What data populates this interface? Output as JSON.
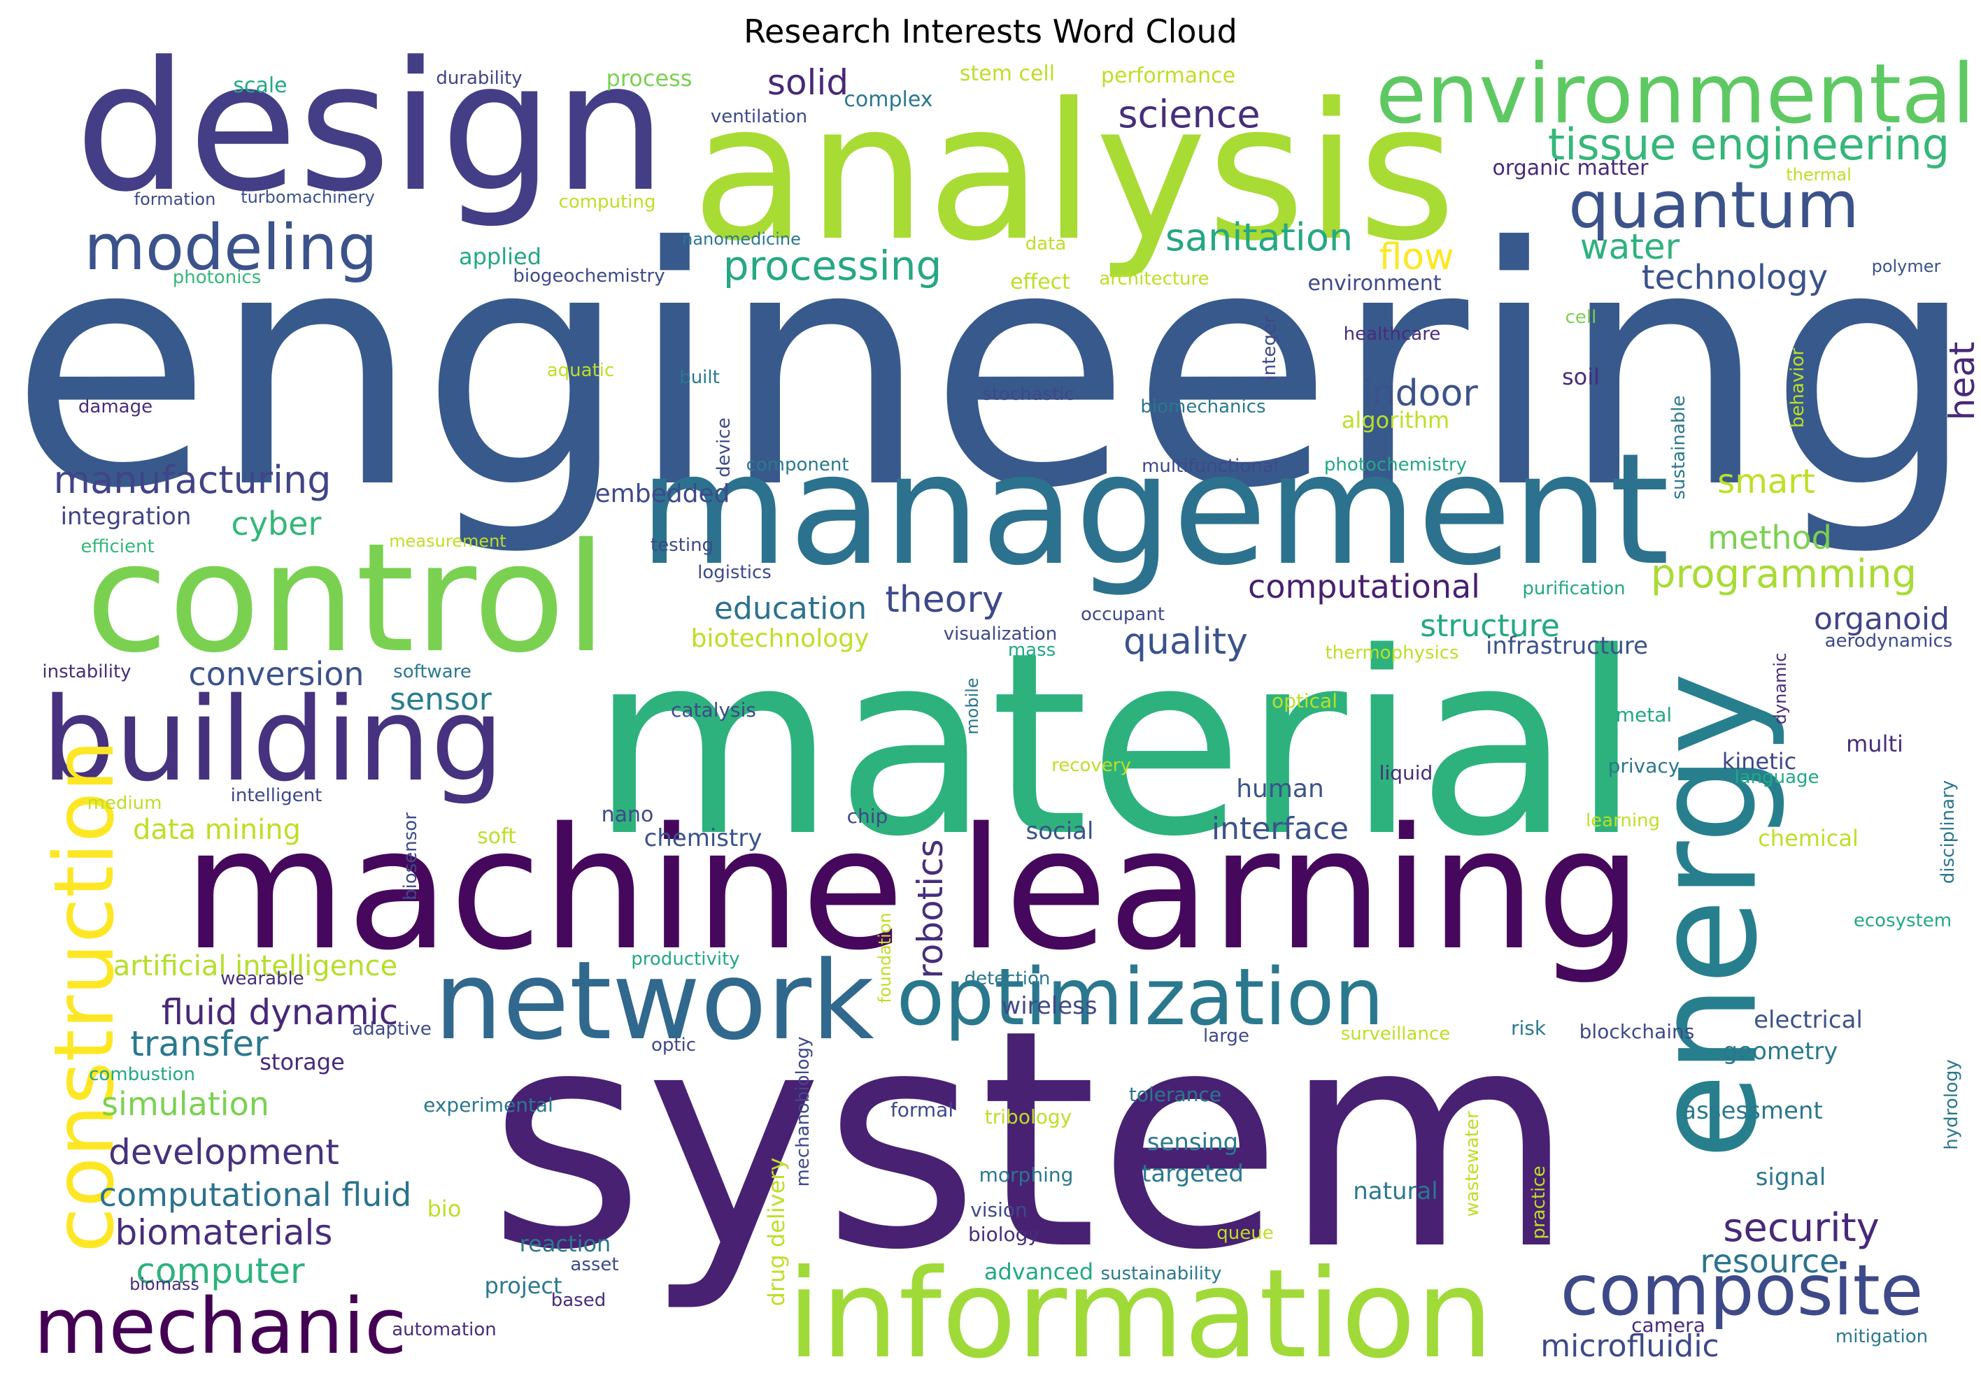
{
  "title": "Research Interests Word Cloud",
  "words": [
    {
      "text": "engineering",
      "color": "#38598c",
      "size": 1.0
    },
    {
      "text": "system",
      "color": "#482173",
      "size": 0.92
    },
    {
      "text": "material",
      "color": "#2db27d",
      "size": 0.84
    },
    {
      "text": "analysis",
      "color": "#a8db34",
      "size": 0.6
    },
    {
      "text": "design",
      "color": "#433e85",
      "size": 0.58
    },
    {
      "text": "machine learning",
      "color": "#46085c",
      "size": 0.52
    },
    {
      "text": "management",
      "color": "#2c728e",
      "size": 0.5
    },
    {
      "text": "control",
      "color": "#7ad151",
      "size": 0.5
    },
    {
      "text": "energy",
      "color": "#277f8e",
      "size": 0.48
    },
    {
      "text": "information",
      "color": "#a0da39",
      "size": 0.38
    },
    {
      "text": "building",
      "color": "#46327e",
      "size": 0.36
    },
    {
      "text": "network",
      "color": "#31688e",
      "size": 0.35
    },
    {
      "text": "optimization",
      "color": "#2a788e",
      "size": 0.3
    },
    {
      "text": "construction",
      "color": "#fde725",
      "size": 0.3
    },
    {
      "text": "environmental",
      "color": "#5ec962",
      "size": 0.28
    },
    {
      "text": "mechanic",
      "color": "#440154",
      "size": 0.26
    },
    {
      "text": "composite",
      "color": "#3e4989",
      "size": 0.25
    },
    {
      "text": "quantum",
      "color": "#3b528b",
      "size": 0.2
    },
    {
      "text": "modeling",
      "color": "#3b528b",
      "size": 0.18
    },
    {
      "text": "tissue engineering",
      "color": "#35b779",
      "size": 0.14
    },
    {
      "text": "processing",
      "color": "#26a784",
      "size": 0.13
    },
    {
      "text": "sanitation",
      "color": "#26a784",
      "size": 0.12
    },
    {
      "text": "manufacturing",
      "color": "#414487",
      "size": 0.12
    },
    {
      "text": "science",
      "color": "#472d7b",
      "size": 0.12
    },
    {
      "text": "solid",
      "color": "#482878",
      "size": 0.11
    },
    {
      "text": "water",
      "color": "#2db27d",
      "size": 0.11
    },
    {
      "text": "technology",
      "color": "#3b528b",
      "size": 0.1
    },
    {
      "text": "flow",
      "color": "#fde725",
      "size": 0.11
    },
    {
      "text": "heat",
      "color": "#482878",
      "size": 0.1
    },
    {
      "text": "indoor",
      "color": "#3b528b",
      "size": 0.11
    },
    {
      "text": "smart",
      "color": "#bddf26",
      "size": 0.1
    },
    {
      "text": "method",
      "color": "#7ad151",
      "size": 0.1
    },
    {
      "text": "programming",
      "color": "#a8db34",
      "size": 0.1
    },
    {
      "text": "computational",
      "color": "#481f70",
      "size": 0.1
    },
    {
      "text": "education",
      "color": "#2c728e",
      "size": 0.1
    },
    {
      "text": "theory",
      "color": "#3e4989",
      "size": 0.11
    },
    {
      "text": "quality",
      "color": "#3b528b",
      "size": 0.12
    },
    {
      "text": "structure",
      "color": "#22a884",
      "size": 0.1
    },
    {
      "text": "organoid",
      "color": "#414487",
      "size": 0.1
    },
    {
      "text": "cyber",
      "color": "#35b779",
      "size": 0.1
    },
    {
      "text": "conversion",
      "color": "#3b528b",
      "size": 0.1
    },
    {
      "text": "sensor",
      "color": "#287d8e",
      "size": 0.09
    },
    {
      "text": "robotics",
      "color": "#472d7b",
      "size": 0.1
    },
    {
      "text": "interface",
      "color": "#3b528b",
      "size": 0.09
    },
    {
      "text": "fluid dynamic",
      "color": "#482878",
      "size": 0.1
    },
    {
      "text": "transfer",
      "color": "#2a788e",
      "size": 0.1
    },
    {
      "text": "simulation",
      "color": "#7ad151",
      "size": 0.1
    },
    {
      "text": "development",
      "color": "#46327e",
      "size": 0.1
    },
    {
      "text": "computational fluid",
      "color": "#2c728e",
      "size": 0.1
    },
    {
      "text": "biomaterials",
      "color": "#472d7b",
      "size": 0.1
    },
    {
      "text": "computer",
      "color": "#2db27d",
      "size": 0.1
    },
    {
      "text": "security",
      "color": "#482878",
      "size": 0.1
    },
    {
      "text": "resource",
      "color": "#2c728e",
      "size": 0.09
    },
    {
      "text": "microfluidic",
      "color": "#3e4989",
      "size": 0.09
    },
    {
      "text": "data mining",
      "color": "#bddf26",
      "size": 0.08
    },
    {
      "text": "artificial intelligence",
      "color": "#b5de2b",
      "size": 0.08
    },
    {
      "text": "infrastructure",
      "color": "#3b528b",
      "size": 0.07
    },
    {
      "text": "embedded",
      "color": "#3e4989",
      "size": 0.07
    },
    {
      "text": "integration",
      "color": "#414487",
      "size": 0.07
    },
    {
      "text": "biotechnology",
      "color": "#bddf26",
      "size": 0.07
    },
    {
      "text": "chemistry",
      "color": "#3b528b",
      "size": 0.07
    },
    {
      "text": "human",
      "color": "#3b528b",
      "size": 0.07
    },
    {
      "text": "social",
      "color": "#3b528b",
      "size": 0.07
    },
    {
      "text": "wireless",
      "color": "#3e4989",
      "size": 0.07
    },
    {
      "text": "electrical",
      "color": "#3b528b",
      "size": 0.07
    },
    {
      "text": "geometry",
      "color": "#2a788e",
      "size": 0.07
    },
    {
      "text": "assessment",
      "color": "#2a788e",
      "size": 0.07
    },
    {
      "text": "signal",
      "color": "#2a788e",
      "size": 0.07
    },
    {
      "text": "natural",
      "color": "#2a788e",
      "size": 0.07
    },
    {
      "text": "targeted",
      "color": "#2a788e",
      "size": 0.07
    },
    {
      "text": "sensing",
      "color": "#2a788e",
      "size": 0.07
    },
    {
      "text": "storage",
      "color": "#482878",
      "size": 0.06
    },
    {
      "text": "multi",
      "color": "#472d7b",
      "size": 0.06
    },
    {
      "text": "kinetic",
      "color": "#3e4989",
      "size": 0.06
    },
    {
      "text": "reaction",
      "color": "#2a788e",
      "size": 0.06
    },
    {
      "text": "project",
      "color": "#2a788e",
      "size": 0.06
    },
    {
      "text": "advanced",
      "color": "#22a884",
      "size": 0.06
    },
    {
      "text": "camera",
      "color": "#472d7b",
      "size": 0.05
    },
    {
      "text": "chemical",
      "color": "#bddf26",
      "size": 0.06
    },
    {
      "text": "soil",
      "color": "#472d7b",
      "size": 0.06
    },
    {
      "text": "algorithm",
      "color": "#bddf26",
      "size": 0.06
    },
    {
      "text": "environment",
      "color": "#3e4989",
      "size": 0.06
    },
    {
      "text": "applied",
      "color": "#22a884",
      "size": 0.06
    },
    {
      "text": "process",
      "color": "#7ad151",
      "size": 0.06
    },
    {
      "text": "scale",
      "color": "#22a884",
      "size": 0.06
    },
    {
      "text": "complex",
      "color": "#2a788e",
      "size": 0.06
    },
    {
      "text": "stem cell",
      "color": "#bddf26",
      "size": 0.06
    },
    {
      "text": "performance",
      "color": "#bddf26",
      "size": 0.06
    },
    {
      "text": "durability",
      "color": "#414487",
      "size": 0.05
    },
    {
      "text": "ventilation",
      "color": "#3e4989",
      "size": 0.05
    },
    {
      "text": "organic matter",
      "color": "#482878",
      "size": 0.06
    },
    {
      "text": "thermal",
      "color": "#bddf26",
      "size": 0.05
    },
    {
      "text": "formation",
      "color": "#3e4989",
      "size": 0.05
    },
    {
      "text": "turbomachinery",
      "color": "#3b528b",
      "size": 0.05
    },
    {
      "text": "computing",
      "color": "#bddf26",
      "size": 0.05
    },
    {
      "text": "nanomedicine",
      "color": "#2a788e",
      "size": 0.05
    },
    {
      "text": "data",
      "color": "#bddf26",
      "size": 0.05
    },
    {
      "text": "photonics",
      "color": "#35b779",
      "size": 0.05
    },
    {
      "text": "biogeochemistry",
      "color": "#3e4989",
      "size": 0.05
    },
    {
      "text": "effect",
      "color": "#bddf26",
      "size": 0.06
    },
    {
      "text": "architecture",
      "color": "#bddf26",
      "size": 0.05
    },
    {
      "text": "polymer",
      "color": "#3b528b",
      "size": 0.05
    },
    {
      "text": "cell",
      "color": "#7ad151",
      "size": 0.05
    },
    {
      "text": "healthcare",
      "color": "#472d7b",
      "size": 0.05
    },
    {
      "text": "integer",
      "color": "#3e4989",
      "size": 0.05
    },
    {
      "text": "aquatic",
      "color": "#bddf26",
      "size": 0.05
    },
    {
      "text": "built",
      "color": "#2a788e",
      "size": 0.05
    },
    {
      "text": "damage",
      "color": "#472d7b",
      "size": 0.05
    },
    {
      "text": "stochastic",
      "color": "#3e4989",
      "size": 0.05
    },
    {
      "text": "biomechanics",
      "color": "#2a788e",
      "size": 0.05
    },
    {
      "text": "sustainable",
      "color": "#2a788e",
      "size": 0.05
    },
    {
      "text": "behavior",
      "color": "#bddf26",
      "size": 0.05
    },
    {
      "text": "device",
      "color": "#3e4989",
      "size": 0.05
    },
    {
      "text": "component",
      "color": "#2a788e",
      "size": 0.05
    },
    {
      "text": "multifunctional",
      "color": "#3e4989",
      "size": 0.05
    },
    {
      "text": "photochemistry",
      "color": "#22a884",
      "size": 0.05
    },
    {
      "text": "efficient",
      "color": "#35b779",
      "size": 0.05
    },
    {
      "text": "measurement",
      "color": "#bddf26",
      "size": 0.05
    },
    {
      "text": "testing",
      "color": "#3e4989",
      "size": 0.05
    },
    {
      "text": "logistics",
      "color": "#3e4989",
      "size": 0.05
    },
    {
      "text": "purification",
      "color": "#22a884",
      "size": 0.05
    },
    {
      "text": "occupant",
      "color": "#3e4989",
      "size": 0.05
    },
    {
      "text": "visualization",
      "color": "#3e4989",
      "size": 0.05
    },
    {
      "text": "mass",
      "color": "#22a884",
      "size": 0.05
    },
    {
      "text": "thermophysics",
      "color": "#bddf26",
      "size": 0.05
    },
    {
      "text": "aerodynamics",
      "color": "#3e4989",
      "size": 0.05
    },
    {
      "text": "instability",
      "color": "#472d7b",
      "size": 0.05
    },
    {
      "text": "software",
      "color": "#2a788e",
      "size": 0.05
    },
    {
      "text": "catalysis",
      "color": "#3e4989",
      "size": 0.05
    },
    {
      "text": "mobile",
      "color": "#2a788e",
      "size": 0.05
    },
    {
      "text": "optical",
      "color": "#bddf26",
      "size": 0.05
    },
    {
      "text": "metal",
      "color": "#22a884",
      "size": 0.05
    },
    {
      "text": "dynamic",
      "color": "#472d7b",
      "size": 0.05
    },
    {
      "text": "recovery",
      "color": "#bddf26",
      "size": 0.05
    },
    {
      "text": "liquid",
      "color": "#472d7b",
      "size": 0.05
    },
    {
      "text": "privacy",
      "color": "#2a788e",
      "size": 0.05
    },
    {
      "text": "language",
      "color": "#22a884",
      "size": 0.05
    },
    {
      "text": "disciplinary",
      "color": "#2a788e",
      "size": 0.05
    },
    {
      "text": "medium",
      "color": "#bddf26",
      "size": 0.05
    },
    {
      "text": "intelligent",
      "color": "#3e4989",
      "size": 0.05
    },
    {
      "text": "biosensor",
      "color": "#3e4989",
      "size": 0.05
    },
    {
      "text": "nano",
      "color": "#3e4989",
      "size": 0.06
    },
    {
      "text": "chip",
      "color": "#3e4989",
      "size": 0.05
    },
    {
      "text": "learning",
      "color": "#bddf26",
      "size": 0.05
    },
    {
      "text": "soft",
      "color": "#bddf26",
      "size": 0.06
    },
    {
      "text": "foundation",
      "color": "#bddf26",
      "size": 0.05
    },
    {
      "text": "productivity",
      "color": "#22a884",
      "size": 0.05
    },
    {
      "text": "ecosystem",
      "color": "#22a884",
      "size": 0.05
    },
    {
      "text": "wearable",
      "color": "#472d7b",
      "size": 0.05
    },
    {
      "text": "detection",
      "color": "#2a788e",
      "size": 0.05
    },
    {
      "text": "adaptive",
      "color": "#3e4989",
      "size": 0.05
    },
    {
      "text": "large",
      "color": "#3e4989",
      "size": 0.05
    },
    {
      "text": "surveillance",
      "color": "#bddf26",
      "size": 0.05
    },
    {
      "text": "risk",
      "color": "#2a788e",
      "size": 0.05
    },
    {
      "text": "blockchains",
      "color": "#3e4989",
      "size": 0.05
    },
    {
      "text": "optic",
      "color": "#3e4989",
      "size": 0.05
    },
    {
      "text": "mechanobiology",
      "color": "#3e4989",
      "size": 0.05
    },
    {
      "text": "combustion",
      "color": "#22a884",
      "size": 0.05
    },
    {
      "text": "tolerance",
      "color": "#2a788e",
      "size": 0.05
    },
    {
      "text": "experimental",
      "color": "#2a788e",
      "size": 0.05
    },
    {
      "text": "formal",
      "color": "#3e4989",
      "size": 0.05
    },
    {
      "text": "tribology",
      "color": "#bddf26",
      "size": 0.05
    },
    {
      "text": "hydrology",
      "color": "#2a788e",
      "size": 0.05
    },
    {
      "text": "wastewater",
      "color": "#bddf26",
      "size": 0.05
    },
    {
      "text": "practice",
      "color": "#bddf26",
      "size": 0.05
    },
    {
      "text": "drug delivery",
      "color": "#bddf26",
      "size": 0.06
    },
    {
      "text": "morphing",
      "color": "#2a788e",
      "size": 0.05
    },
    {
      "text": "vision",
      "color": "#3e4989",
      "size": 0.05
    },
    {
      "text": "biology",
      "color": "#472d7b",
      "size": 0.05
    },
    {
      "text": "queue",
      "color": "#bddf26",
      "size": 0.05
    },
    {
      "text": "bio",
      "color": "#bddf26",
      "size": 0.06
    },
    {
      "text": "asset",
      "color": "#3e4989",
      "size": 0.05
    },
    {
      "text": "biomass",
      "color": "#472d7b",
      "size": 0.05
    },
    {
      "text": "based",
      "color": "#472d7b",
      "size": 0.05
    },
    {
      "text": "sustainability",
      "color": "#2a788e",
      "size": 0.05
    },
    {
      "text": "automation",
      "color": "#472d7b",
      "size": 0.05
    },
    {
      "text": "mitigation",
      "color": "#2a788e",
      "size": 0.05
    }
  ]
}
